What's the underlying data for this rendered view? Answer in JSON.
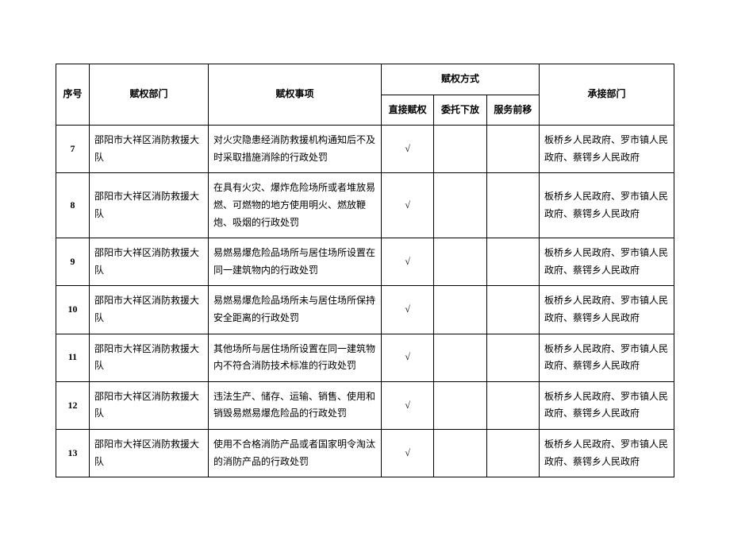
{
  "headers": {
    "seq": "序号",
    "dept": "赋权部门",
    "matter": "赋权事项",
    "method_group": "赋权方式",
    "method_direct": "直接赋权",
    "method_delegate": "委托下放",
    "method_service": "服务前移",
    "recv": "承接部门"
  },
  "checkmark": "√",
  "rows": [
    {
      "seq": "7",
      "dept": "邵阳市大祥区消防救援大队",
      "matter": "对火灾隐患经消防救援机构通知后不及时采取措施消除的行政处罚",
      "direct": true,
      "delegate": false,
      "service": false,
      "recv": "板桥乡人民政府、罗市镇人民政府、蔡锷乡人民政府"
    },
    {
      "seq": "8",
      "dept": "邵阳市大祥区消防救援大队",
      "matter": "在具有火灾、爆炸危险场所或者堆放易燃、可燃物的地方使用明火、燃放鞭炮、吸烟的行政处罚",
      "direct": true,
      "delegate": false,
      "service": false,
      "recv": "板桥乡人民政府、罗市镇人民政府、蔡锷乡人民政府"
    },
    {
      "seq": "9",
      "dept": "邵阳市大祥区消防救援大队",
      "matter": "易燃易爆危险品场所与居住场所设置在同一建筑物内的行政处罚",
      "direct": true,
      "delegate": false,
      "service": false,
      "recv": "板桥乡人民政府、罗市镇人民政府、蔡锷乡人民政府"
    },
    {
      "seq": "10",
      "dept": "邵阳市大祥区消防救援大队",
      "matter": "易燃易爆危险品场所未与居住场所保持安全距离的行政处罚",
      "direct": true,
      "delegate": false,
      "service": false,
      "recv": "板桥乡人民政府、罗市镇人民政府、蔡锷乡人民政府"
    },
    {
      "seq": "11",
      "dept": "邵阳市大祥区消防救援大队",
      "matter": "其他场所与居住场所设置在同一建筑物内不符合消防技术标准的行政处罚",
      "direct": true,
      "delegate": false,
      "service": false,
      "recv": "板桥乡人民政府、罗市镇人民政府、蔡锷乡人民政府"
    },
    {
      "seq": "12",
      "dept": "邵阳市大祥区消防救援大队",
      "matter": "违法生产、储存、运输、销售、使用和销毁易燃易爆危险品的行政处罚",
      "direct": true,
      "delegate": false,
      "service": false,
      "recv": "板桥乡人民政府、罗市镇人民政府、蔡锷乡人民政府"
    },
    {
      "seq": "13",
      "dept": "邵阳市大祥区消防救援大队",
      "matter": "使用不合格消防产品或者国家明令淘汰的消防产品的行政处罚",
      "direct": true,
      "delegate": false,
      "service": false,
      "recv": "板桥乡人民政府、罗市镇人民政府、蔡锷乡人民政府"
    }
  ]
}
